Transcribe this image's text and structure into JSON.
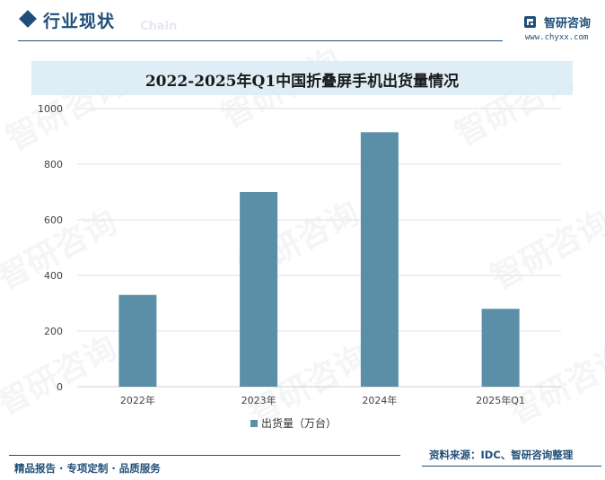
{
  "header": {
    "section_title": "行业现状",
    "section_sub": "Chain",
    "brand_name": "智研咨询",
    "brand_url": "www.chyxx.com"
  },
  "chart_data": {
    "type": "bar",
    "title": "2022-2025年Q1中国折叠屏手机出货量情况",
    "categories": [
      "2022年",
      "2023年",
      "2024年",
      "2025年Q1"
    ],
    "series": [
      {
        "name": "出货量（万台）",
        "values": [
          330,
          700,
          915,
          280
        ],
        "color": "#5b8fa8"
      }
    ],
    "ylim": [
      0,
      1000
    ],
    "yticks": [
      0,
      200,
      400,
      600,
      800,
      1000
    ],
    "grid": true,
    "legend_position": "bottom"
  },
  "footer": {
    "left": "精品报告 · 专项定制 · 品质服务",
    "right": "资料来源：IDC、智研咨询整理"
  },
  "watermark": "智研咨询"
}
